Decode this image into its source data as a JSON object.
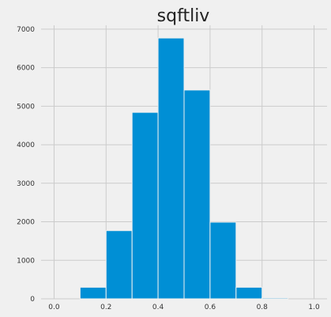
{
  "chart_data": {
    "type": "bar",
    "title": "sqftliv",
    "bins": [
      {
        "x0": 0.0,
        "x1": 0.1,
        "count": 0
      },
      {
        "x0": 0.1,
        "x1": 0.2,
        "count": 300
      },
      {
        "x0": 0.2,
        "x1": 0.3,
        "count": 1770
      },
      {
        "x0": 0.3,
        "x1": 0.4,
        "count": 4840
      },
      {
        "x0": 0.4,
        "x1": 0.5,
        "count": 6770
      },
      {
        "x0": 0.5,
        "x1": 0.6,
        "count": 5420
      },
      {
        "x0": 0.6,
        "x1": 0.7,
        "count": 1990
      },
      {
        "x0": 0.7,
        "x1": 0.8,
        "count": 300
      },
      {
        "x0": 0.8,
        "x1": 0.9,
        "count": 25
      },
      {
        "x0": 0.9,
        "x1": 1.0,
        "count": 0
      }
    ],
    "xlim": [
      -0.05,
      1.05
    ],
    "ylim": [
      0,
      7100
    ],
    "xticks": [
      "0.0",
      "0.2",
      "0.4",
      "0.6",
      "0.8",
      "1.0"
    ],
    "yticks": [
      "0",
      "1000",
      "2000",
      "3000",
      "4000",
      "5000",
      "6000",
      "7000"
    ],
    "grid": true,
    "colors": {
      "bar": "#008fd5",
      "background": "#f0f0f0",
      "grid": "#cbcbcb"
    }
  }
}
